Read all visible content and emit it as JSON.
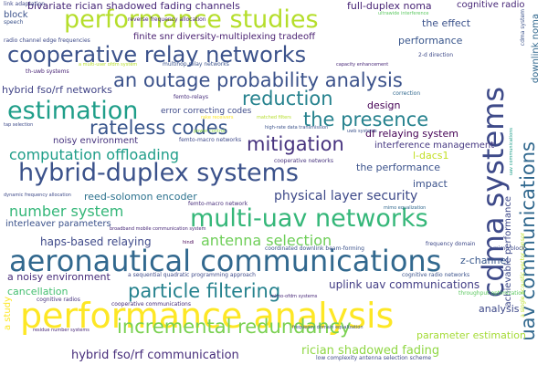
{
  "colors": {
    "background": "#ffffff",
    "palette": [
      "#440154",
      "#3b528b",
      "#21918c",
      "#5ec962",
      "#fde725"
    ]
  },
  "words": [
    {
      "text": "performance analysis",
      "color": "#fde725"
    },
    {
      "text": "aeronautical communications",
      "color": "#31688e"
    },
    {
      "text": "hybrid-duplex systems",
      "color": "#3b528b"
    },
    {
      "text": "multi-uav networks",
      "color": "#35b779"
    },
    {
      "text": "cdma systems",
      "color": "#3e4a89"
    },
    {
      "text": "performance studies",
      "color": "#b5de2b"
    },
    {
      "text": "cooperative relay networks",
      "color": "#3b528b"
    },
    {
      "text": "estimation",
      "color": "#1f9e89"
    },
    {
      "text": "uav communications",
      "color": "#31688e"
    },
    {
      "text": "an outage probability analysis",
      "color": "#3b528b"
    },
    {
      "text": "particle filtering",
      "color": "#26828e"
    },
    {
      "text": "incremental redundancy",
      "color": "#7ad151"
    },
    {
      "text": "rateless codes",
      "color": "#39568c"
    },
    {
      "text": "reduction",
      "color": "#26828e"
    },
    {
      "text": "the presence",
      "color": "#26828e"
    },
    {
      "text": "mitigation",
      "color": "#46327e"
    },
    {
      "text": "computation offloading",
      "color": "#1f9e89"
    },
    {
      "text": "antenna selection",
      "color": "#6ece58"
    },
    {
      "text": "number system",
      "color": "#35b779"
    },
    {
      "text": "physical layer security",
      "color": "#3e4a89"
    },
    {
      "text": "bivariate rician shadowed fading channels",
      "color": "#482878"
    },
    {
      "text": "finite snr diversity-multiplexing tradeoff",
      "color": "#481f70"
    },
    {
      "text": "hybrid fso/rf communication",
      "color": "#472d7b"
    },
    {
      "text": "rician shadowed fading",
      "color": "#8fd744"
    },
    {
      "text": "uplink uav communications",
      "color": "#433e85"
    },
    {
      "text": "haps-based relaying",
      "color": "#3e4989"
    },
    {
      "text": "hybrid fso/rf networks",
      "color": "#414487"
    },
    {
      "text": "reed-solomon encoder",
      "color": "#2c728e"
    },
    {
      "text": "full-duplex noma",
      "color": "#482475"
    },
    {
      "text": "df relaying system",
      "color": "#440154"
    },
    {
      "text": "the performance",
      "color": "#3b528b"
    },
    {
      "text": "z-channel",
      "color": "#38588c"
    },
    {
      "text": "a noisy environment",
      "color": "#472c7a"
    },
    {
      "text": "analysis",
      "color": "#3e4989"
    },
    {
      "text": "parameter estimation",
      "color": "#a5db36"
    },
    {
      "text": "cancellation",
      "color": "#44bf70"
    },
    {
      "text": "design",
      "color": "#440154"
    },
    {
      "text": "impact",
      "color": "#3b528b"
    },
    {
      "text": "l-dacs1",
      "color": "#c2df23"
    },
    {
      "text": "performance",
      "color": "#39568c"
    },
    {
      "text": "the effect",
      "color": "#3b528b"
    },
    {
      "text": "noisy environment",
      "color": "#46337e"
    },
    {
      "text": "interleaver parameters",
      "color": "#3b528b"
    },
    {
      "text": "error correcting codes",
      "color": "#3e4a89"
    },
    {
      "text": "interference management",
      "color": "#453781"
    },
    {
      "text": "block",
      "color": "#3b528b"
    },
    {
      "text": "cognitive radio",
      "color": "#482878"
    },
    {
      "text": "achievable performance",
      "color": "#3e4989"
    },
    {
      "text": "downlink noma",
      "color": "#31688e"
    },
    {
      "text": "a study",
      "color": "#fde725"
    },
    {
      "text": "a single acoustic vector sensor",
      "color": "#bddf26"
    },
    {
      "text": "cdma system",
      "color": "#3b528b"
    },
    {
      "text": "link adaptation",
      "color": "#3e4989"
    },
    {
      "text": "speech",
      "color": "#3b528b"
    },
    {
      "text": "radio channel edge frequencies",
      "color": "#3e4a89"
    },
    {
      "text": "th-uwb systems",
      "color": "#482475"
    },
    {
      "text": "multihop relay networks",
      "color": "#3b528b"
    },
    {
      "text": "2-d direction",
      "color": "#3e4a89"
    },
    {
      "text": "ultrawide interference",
      "color": "#5ec962"
    },
    {
      "text": "capacity enhancement",
      "color": "#482878"
    },
    {
      "text": "a multi-user ofdm system",
      "color": "#b5de2b"
    },
    {
      "text": "uav communications",
      "color": "#1f9e89"
    },
    {
      "text": "femto-relays",
      "color": "#472d7b"
    },
    {
      "text": "correction",
      "color": "#31688e"
    },
    {
      "text": "tap selection",
      "color": "#3e4a89"
    },
    {
      "text": "high-rate data transmission",
      "color": "#3b528b"
    },
    {
      "text": "femto-macro networks",
      "color": "#3e4989"
    },
    {
      "text": "uwb systems",
      "color": "#3b528b"
    },
    {
      "text": "cooperative networks",
      "color": "#46337e"
    },
    {
      "text": "dynamic frequency allocation",
      "color": "#3e4a89"
    },
    {
      "text": "femto-macro network",
      "color": "#472c7a"
    },
    {
      "text": "broadband mobile communication system",
      "color": "#482878"
    },
    {
      "text": "mimo equalization",
      "color": "#31688e"
    },
    {
      "text": "coordinated downlink beam-forming",
      "color": "#3b528b"
    },
    {
      "text": "frequency domain",
      "color": "#3e4989"
    },
    {
      "text": "mimo block",
      "color": "#3e4a89"
    },
    {
      "text": "hindi",
      "color": "#440154"
    },
    {
      "text": "a sequential quadratic programming approach",
      "color": "#3e4a89"
    },
    {
      "text": "mimo-ofdm systems",
      "color": "#482878"
    },
    {
      "text": "cognitive radio networks",
      "color": "#3b528b"
    },
    {
      "text": "throughput optimization",
      "color": "#5ec962"
    },
    {
      "text": "cooperative communications",
      "color": "#472c7a"
    },
    {
      "text": "cognitive radios",
      "color": "#46337e"
    },
    {
      "text": "residue number systems",
      "color": "#482878"
    },
    {
      "text": "frequency domain equalization",
      "color": "#3b528b"
    },
    {
      "text": "low complexity antenna selection scheme",
      "color": "#3e4a89"
    },
    {
      "text": "reverse frequency allocation",
      "color": "#482475"
    },
    {
      "text": "matched filters",
      "color": "#b5de2b"
    },
    {
      "text": "rake receivers",
      "color": "#fde725"
    },
    {
      "text": "power control",
      "color": "#8fd744"
    }
  ]
}
